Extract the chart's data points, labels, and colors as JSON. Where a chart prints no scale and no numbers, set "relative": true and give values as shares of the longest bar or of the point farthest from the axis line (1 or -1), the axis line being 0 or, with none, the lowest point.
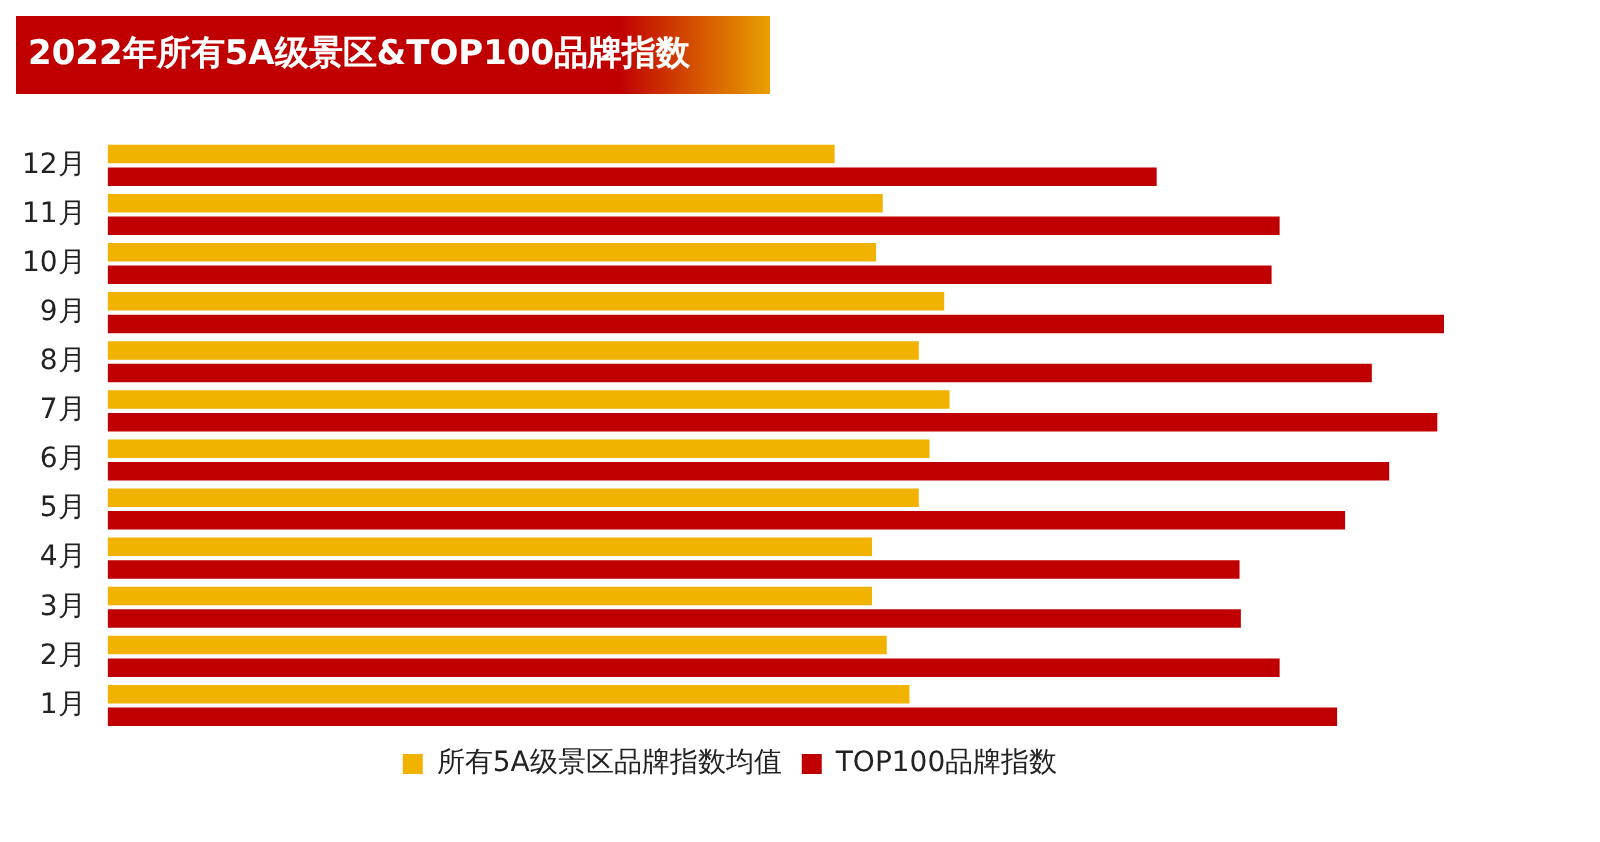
{
  "chart_data": {
    "type": "bar",
    "orientation": "horizontal",
    "relative": true,
    "title": "2022年所有5A级景区&TOP100品牌指数",
    "categories": [
      "12月",
      "11月",
      "10月",
      "9月",
      "8月",
      "7月",
      "6月",
      "5月",
      "4月",
      "3月",
      "2月",
      "1月"
    ],
    "legend": "bottom",
    "series": [
      {
        "name": "所有5A级景区品牌指数均值",
        "color": "#f2b200",
        "values": [
          0.544,
          0.58,
          0.575,
          0.626,
          0.607,
          0.63,
          0.615,
          0.607,
          0.572,
          0.572,
          0.583,
          0.6
        ]
      },
      {
        "name": "TOP100品牌指数",
        "color": "#c00000",
        "values": [
          0.785,
          0.877,
          0.871,
          1,
          0.946,
          0.995,
          0.959,
          0.926,
          0.847,
          0.848,
          0.877,
          0.92
        ]
      }
    ]
  }
}
